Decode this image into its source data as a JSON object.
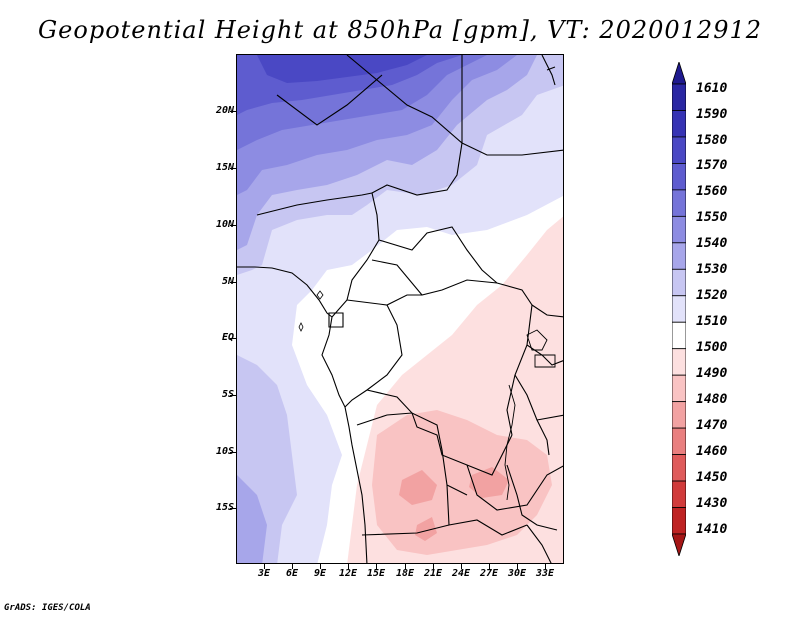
{
  "title": "Geopotential Height at 850hPa [gpm], VT: 2020012912",
  "credit": "GrADS: IGES/COLA",
  "map": {
    "lat_labels": [
      "20N",
      "15N",
      "10N",
      "5N",
      "EQ",
      "5S",
      "10S",
      "15S"
    ],
    "lon_labels": [
      "3E",
      "6E",
      "9E",
      "12E",
      "15E",
      "18E",
      "21E",
      "24E",
      "27E",
      "30E",
      "33E"
    ]
  },
  "colorbar": {
    "levels": [
      "1610",
      "1590",
      "1580",
      "1570",
      "1560",
      "1550",
      "1540",
      "1530",
      "1520",
      "1510",
      "1500",
      "1490",
      "1480",
      "1470",
      "1460",
      "1450",
      "1430",
      "1410"
    ],
    "colors": [
      "#1f1a8f",
      "#2a27a3",
      "#3633b4",
      "#4a48c4",
      "#5e5ccf",
      "#7574d9",
      "#8d8ce2",
      "#a7a6ea",
      "#c7c6f2",
      "#e2e2fa",
      "#ffffff",
      "#fde0e0",
      "#f9c3c3",
      "#f2a2a2",
      "#e97f7f",
      "#df5b5b",
      "#d13b3b",
      "#bf2323",
      "#a51616"
    ]
  }
}
